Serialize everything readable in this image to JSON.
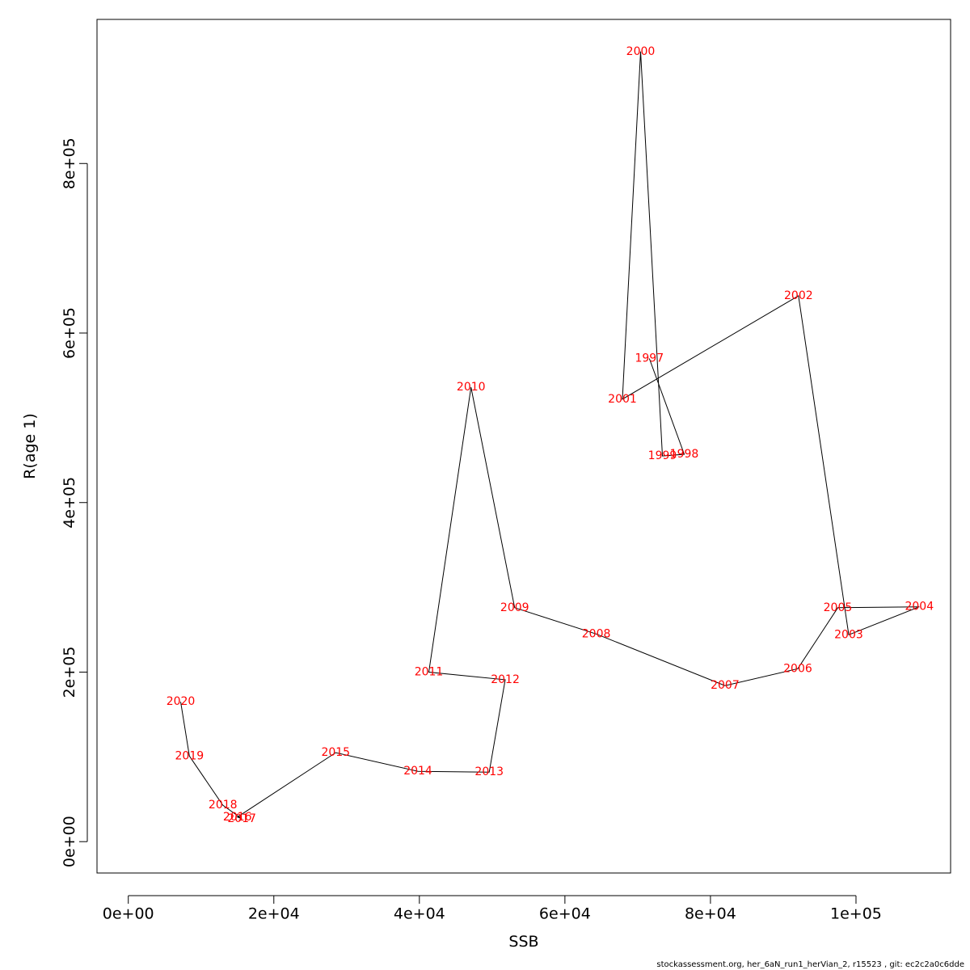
{
  "chart_data": {
    "type": "line",
    "title": "",
    "xlabel": "SSB",
    "ylabel": "R(age 1)",
    "xlim": [
      -4300,
      113000
    ],
    "ylim": [
      -37000,
      970000
    ],
    "x_ticks": [
      0,
      20000,
      40000,
      60000,
      80000,
      100000
    ],
    "x_tick_labels": [
      "0e+00",
      "2e+04",
      "4e+04",
      "6e+04",
      "8e+04",
      "1e+05"
    ],
    "y_ticks": [
      0,
      200000,
      400000,
      600000,
      800000
    ],
    "y_tick_labels": [
      "0e+00",
      "2e+05",
      "4e+05",
      "6e+05",
      "8e+05"
    ],
    "grid": false,
    "line_color": "#000000",
    "label_color": "#ff0000",
    "points": [
      {
        "year": "1997",
        "x": 71600,
        "y": 570000
      },
      {
        "year": "1998",
        "x": 76400,
        "y": 457000
      },
      {
        "year": "1999",
        "x": 73400,
        "y": 455000
      },
      {
        "year": "2000",
        "x": 70400,
        "y": 932000
      },
      {
        "year": "2001",
        "x": 67900,
        "y": 522000
      },
      {
        "year": "2002",
        "x": 92100,
        "y": 644000
      },
      {
        "year": "2003",
        "x": 99000,
        "y": 244000
      },
      {
        "year": "2004",
        "x": 108700,
        "y": 277000
      },
      {
        "year": "2005",
        "x": 97500,
        "y": 276000
      },
      {
        "year": "2006",
        "x": 92000,
        "y": 204000
      },
      {
        "year": "2007",
        "x": 82000,
        "y": 184000
      },
      {
        "year": "2008",
        "x": 64300,
        "y": 245000
      },
      {
        "year": "2009",
        "x": 53100,
        "y": 276000
      },
      {
        "year": "2010",
        "x": 47100,
        "y": 536000
      },
      {
        "year": "2011",
        "x": 41300,
        "y": 200000
      },
      {
        "year": "2012",
        "x": 51800,
        "y": 191000
      },
      {
        "year": "2013",
        "x": 49600,
        "y": 82000
      },
      {
        "year": "2014",
        "x": 39800,
        "y": 83000
      },
      {
        "year": "2015",
        "x": 28500,
        "y": 105000
      },
      {
        "year": "2016",
        "x": 15000,
        "y": 29000
      },
      {
        "year": "2017",
        "x": 15600,
        "y": 27000
      },
      {
        "year": "2018",
        "x": 13000,
        "y": 43000
      },
      {
        "year": "2019",
        "x": 8400,
        "y": 101000
      },
      {
        "year": "2020",
        "x": 7200,
        "y": 165000
      }
    ]
  },
  "footer_text": "stockassessment.org, her_6aN_run1_herVian_2, r15523 , git: ec2c2a0c6dde"
}
